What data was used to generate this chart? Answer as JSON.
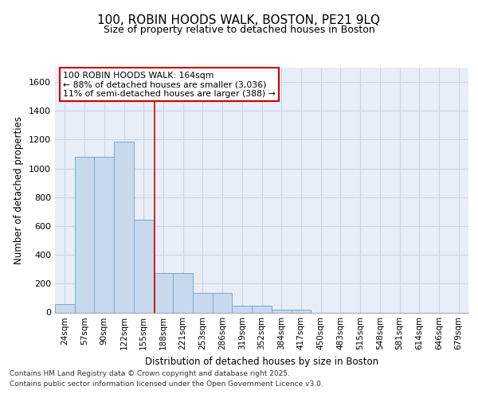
{
  "title_line1": "100, ROBIN HOODS WALK, BOSTON, PE21 9LQ",
  "title_line2": "Size of property relative to detached houses in Boston",
  "xlabel": "Distribution of detached houses by size in Boston",
  "ylabel": "Number of detached properties",
  "categories": [
    "24sqm",
    "57sqm",
    "90sqm",
    "122sqm",
    "155sqm",
    "188sqm",
    "221sqm",
    "253sqm",
    "286sqm",
    "319sqm",
    "352sqm",
    "384sqm",
    "417sqm",
    "450sqm",
    "483sqm",
    "515sqm",
    "548sqm",
    "581sqm",
    "614sqm",
    "646sqm",
    "679sqm"
  ],
  "values": [
    60,
    1080,
    1080,
    1185,
    645,
    275,
    275,
    135,
    135,
    45,
    45,
    20,
    20,
    0,
    0,
    0,
    0,
    0,
    0,
    0,
    0
  ],
  "bar_color": "#c8d8ed",
  "bar_edge_color": "#7aaac8",
  "grid_color": "#c8d4e4",
  "background_color": "#e8eef8",
  "vline_x": 4.55,
  "vline_color": "#cc0000",
  "annotation_text": "100 ROBIN HOODS WALK: 164sqm\n← 88% of detached houses are smaller (3,036)\n11% of semi-detached houses are larger (388) →",
  "annotation_box_color": "#cc0000",
  "footer_line1": "Contains HM Land Registry data © Crown copyright and database right 2025.",
  "footer_line2": "Contains public sector information licensed under the Open Government Licence v3.0.",
  "ylim": [
    0,
    1700
  ],
  "yticks": [
    0,
    200,
    400,
    600,
    800,
    1000,
    1200,
    1400,
    1600
  ]
}
